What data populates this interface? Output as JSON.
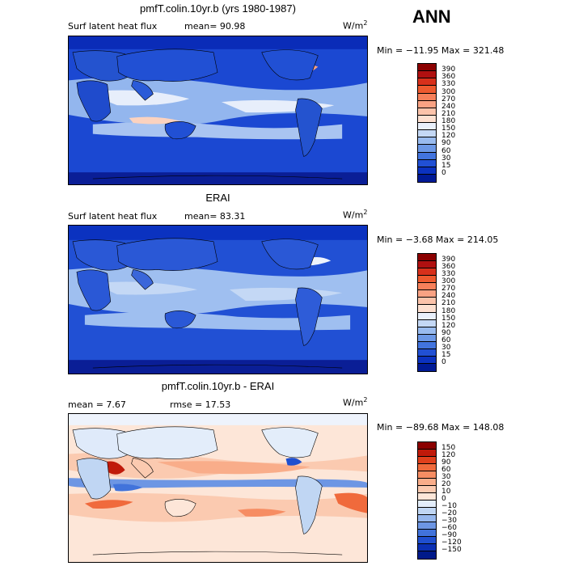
{
  "season": "ANN",
  "panels": [
    {
      "title": "pmfT.colin.10yr.b (yrs 1980-1987)",
      "left_label": "Surf latent heat flux",
      "mean_text": "mean=  90.98",
      "units": "W/m",
      "units_exp": "2",
      "minmax": "Min = −11.95 Max = 321.48",
      "colorbar": {
        "ticks": [
          "390",
          "360",
          "330",
          "300",
          "270",
          "240",
          "210",
          "180",
          "150",
          "120",
          "90",
          "60",
          "30",
          "15",
          "0"
        ],
        "colors": [
          "#8b0000",
          "#b01010",
          "#d8301b",
          "#ee5a2f",
          "#f7805a",
          "#f9a283",
          "#fbc3aa",
          "#fde0d0",
          "#e9f0fb",
          "#c4d8f5",
          "#99bbef",
          "#6c98e6",
          "#4274de",
          "#2150d4",
          "#0b32c0",
          "#001a96"
        ]
      }
    },
    {
      "title": "ERAI",
      "left_label": "Surf latent heat flux",
      "mean_text": "mean=  83.31",
      "units": "W/m",
      "units_exp": "2",
      "minmax": "Min =  −3.68 Max = 214.05",
      "colorbar": {
        "ticks": [
          "390",
          "360",
          "330",
          "300",
          "270",
          "240",
          "210",
          "180",
          "150",
          "120",
          "90",
          "60",
          "30",
          "15",
          "0"
        ],
        "colors": [
          "#8b0000",
          "#b01010",
          "#d8301b",
          "#ee5a2f",
          "#f7805a",
          "#f9a283",
          "#fbc3aa",
          "#fde0d0",
          "#e9f0fb",
          "#c4d8f5",
          "#99bbef",
          "#6c98e6",
          "#4274de",
          "#2150d4",
          "#0b32c0",
          "#001a96"
        ]
      }
    },
    {
      "title": "pmfT.colin.10yr.b - ERAI",
      "left_label": "mean =   7.67",
      "mean_text": "rmse =  17.53",
      "units": "W/m",
      "units_exp": "2",
      "minmax": "Min = −89.68 Max = 148.08",
      "colorbar": {
        "ticks": [
          "150",
          "120",
          "90",
          "60",
          "30",
          "20",
          "10",
          "0",
          "−10",
          "−20",
          "−30",
          "−60",
          "−90",
          "−120",
          "−150"
        ],
        "colors": [
          "#8b0000",
          "#c01a0a",
          "#e0401c",
          "#f06a3c",
          "#f68d63",
          "#f9ad8a",
          "#fbcab0",
          "#fde6d8",
          "#e3edfa",
          "#c0d6f3",
          "#96b7ed",
          "#6d96e4",
          "#4173db",
          "#1f4fcf",
          "#0b30b4",
          "#001a8a"
        ]
      }
    }
  ]
}
